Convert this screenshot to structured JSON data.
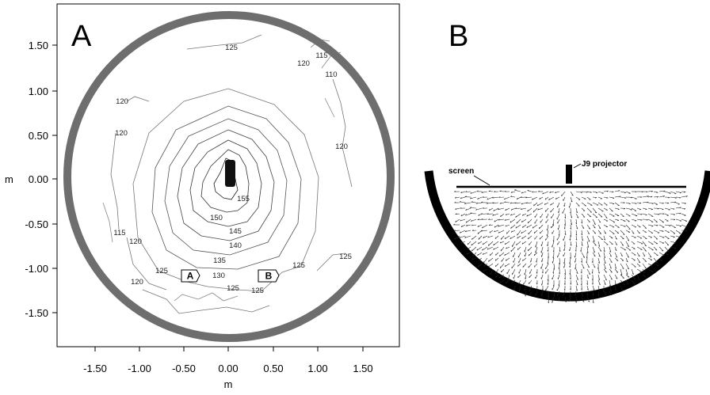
{
  "panel_a": {
    "letter": "A",
    "y_axis_label": "m",
    "x_axis_label": "m",
    "y_ticks": [
      "1.50",
      "1.00",
      "0.50",
      "0.00",
      "-0.50",
      "-1.00",
      "-1.50"
    ],
    "x_ticks": [
      "-1.50",
      "-1.00",
      "-0.50",
      "0.00",
      "0.50",
      "1.00",
      "1.50"
    ],
    "marker_a": "A",
    "marker_b": "B",
    "contour_labels": [
      "125",
      "120",
      "115",
      "110",
      "120",
      "120",
      "120",
      "115",
      "120",
      "120",
      "125",
      "125",
      "130",
      "125",
      "125",
      "125",
      "135",
      "140",
      "145",
      "150",
      "155"
    ]
  },
  "panel_b": {
    "letter": "B",
    "screen_label": "screen",
    "projector_label": "J9 projector"
  }
}
